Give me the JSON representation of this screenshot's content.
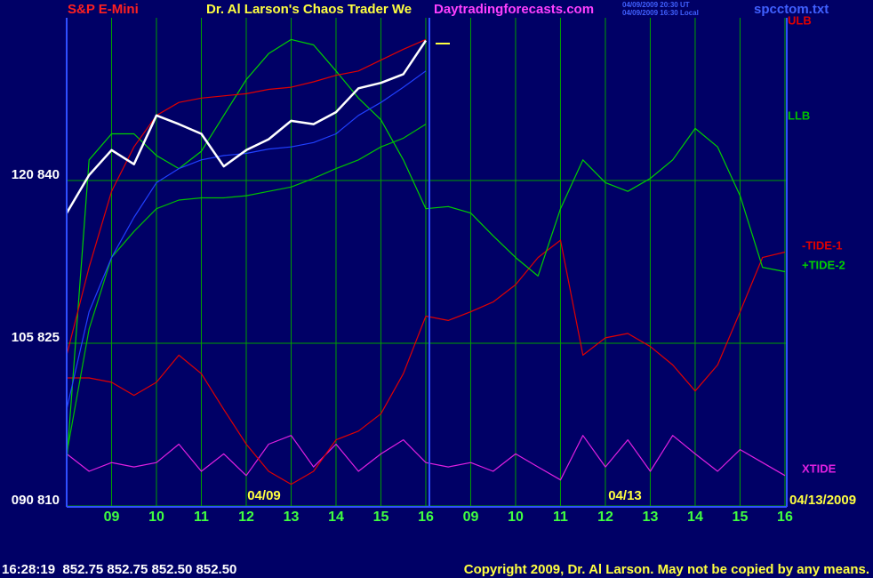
{
  "chart_data": {
    "type": "line",
    "title": "S&P E-Mini",
    "subtitle": "Dr. Al Larson's Chaos Trader We",
    "site": "Daytradingforecasts.com",
    "timestamps": [
      "04/09/2009 20:30 UT",
      "04/09/2009 16:30 Local"
    ],
    "file": "spcctom.txt",
    "annotations": [
      "04/09",
      "04/13",
      "04/13/2009"
    ],
    "status": "16:28:19  852.75 852.75 852.50 852.50",
    "copyright": "Copyright 2009, Dr. Al Larson. May not be copied by any means.",
    "x": [
      0,
      0.5,
      1,
      1.5,
      2,
      2.5,
      3,
      3.5,
      4,
      4.5,
      5,
      5.5,
      6,
      6.5,
      7,
      7.5,
      8,
      8.5,
      9,
      9.5,
      10,
      10.5,
      11,
      11.5,
      12,
      12.5,
      13,
      13.5,
      14,
      14.5,
      15,
      15.5,
      16
    ],
    "xlim": [
      0,
      16.1
    ],
    "xticks": [
      {
        "value": 1,
        "label": "09"
      },
      {
        "value": 2,
        "label": "10"
      },
      {
        "value": 3,
        "label": "11"
      },
      {
        "value": 4,
        "label": "12"
      },
      {
        "value": 5,
        "label": "13"
      },
      {
        "value": 6,
        "label": "14"
      },
      {
        "value": 7,
        "label": "15"
      },
      {
        "value": 8,
        "label": "16"
      },
      {
        "value": 9,
        "label": "09"
      },
      {
        "value": 10,
        "label": "10"
      },
      {
        "value": 11,
        "label": "11"
      },
      {
        "value": 12,
        "label": "12"
      },
      {
        "value": 13,
        "label": "13"
      },
      {
        "value": 14,
        "label": "14"
      },
      {
        "value": 15,
        "label": "15"
      },
      {
        "value": 16,
        "label": "16"
      }
    ],
    "ylim": [
      810,
      855
    ],
    "yticks": [
      {
        "value": 810,
        "label": "090  810"
      },
      {
        "value": 825,
        "label": "105  825"
      },
      {
        "value": 840,
        "label": "120  840"
      }
    ],
    "grid": true,
    "series": [
      {
        "name": "XTIDE",
        "color": "#e020e0",
        "values": [
          814.8,
          813.2,
          814.0,
          813.6,
          814.0,
          815.7,
          813.2,
          814.8,
          812.8,
          815.7,
          816.5,
          813.6,
          815.7,
          813.2,
          814.8,
          816.1,
          814.0,
          813.6,
          814.0,
          813.2,
          814.8,
          813.6,
          812.4,
          816.5,
          813.6,
          816.1,
          813.2,
          816.5,
          814.8,
          813.2,
          815.2,
          814.0,
          812.8
        ]
      },
      {
        "name": "-TIDE-1",
        "color": "#e00000",
        "values": [
          821.8,
          821.8,
          821.4,
          820.2,
          821.4,
          823.9,
          822.2,
          818.9,
          815.7,
          813.2,
          812.0,
          813.2,
          816.1,
          816.9,
          818.5,
          822.2,
          827.5,
          827.1,
          827.9,
          828.8,
          830.4,
          832.9,
          834.5,
          823.9,
          825.5,
          825.9,
          824.7,
          823.0,
          820.6,
          823.0,
          827.9,
          832.9,
          833.4
        ]
      },
      {
        "name": "+TIDE-2",
        "color": "#00d000",
        "values": [
          814.0,
          841.9,
          844.3,
          844.3,
          842.3,
          841.1,
          842.7,
          846.0,
          849.3,
          851.7,
          853.0,
          852.5,
          850.1,
          847.6,
          845.6,
          841.9,
          837.4,
          837.6,
          837.0,
          834.9,
          832.9,
          831.2,
          837.4,
          841.9,
          839.8,
          839.0,
          840.2,
          841.9,
          844.8,
          843.1,
          838.6,
          832.0,
          831.6
        ]
      },
      {
        "name": "LLB",
        "color": "#00c000",
        "values": [
          814.8,
          826.3,
          832.9,
          835.3,
          837.4,
          838.2,
          838.4,
          838.4,
          838.6,
          839.0,
          839.4,
          840.2,
          841.1,
          841.9,
          843.1,
          843.9,
          845.2,
          null,
          null,
          null,
          null,
          null,
          null,
          null,
          null,
          null,
          null,
          null,
          null,
          null,
          null,
          null,
          null
        ]
      },
      {
        "color": "#2040ff",
        "values": [
          818.9,
          827.9,
          832.9,
          836.6,
          839.8,
          841.1,
          841.9,
          842.3,
          842.5,
          842.9,
          843.1,
          843.5,
          844.3,
          846.0,
          847.2,
          848.6,
          850.1,
          null,
          null,
          null,
          null,
          null,
          null,
          null,
          null,
          null,
          null,
          null,
          null,
          null,
          null,
          null,
          null
        ]
      },
      {
        "name": "ULB",
        "color": "#e00000",
        "values": [
          823.9,
          832.0,
          839.0,
          843.1,
          846.0,
          847.2,
          847.6,
          847.8,
          848.0,
          848.4,
          848.6,
          849.1,
          849.7,
          850.1,
          851.1,
          852.1,
          853.0,
          null,
          null,
          null,
          null,
          null,
          null,
          null,
          null,
          null,
          null,
          null,
          null,
          null,
          null,
          null,
          null
        ]
      },
      {
        "color": "#ffffff",
        "values": [
          837.0,
          840.5,
          842.8,
          841.5,
          846.0,
          845.2,
          844.3,
          841.3,
          842.8,
          843.8,
          845.5,
          845.2,
          846.3,
          848.5,
          849.0,
          849.8,
          852.9,
          null,
          null,
          null,
          null,
          null,
          null,
          null,
          null,
          null,
          null,
          null,
          null,
          null,
          null,
          null,
          null
        ]
      }
    ]
  }
}
